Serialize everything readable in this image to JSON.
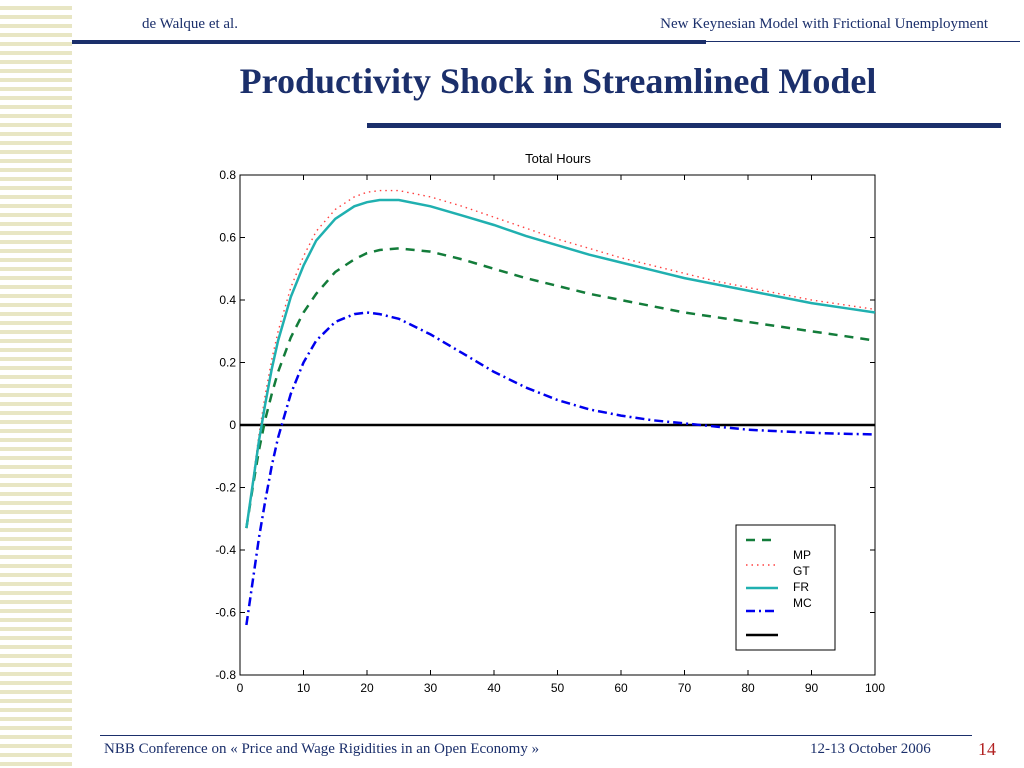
{
  "header": {
    "left": "de Walque et al.",
    "right": "New Keynesian Model  with Frictional Unemployment"
  },
  "slide_title": "Productivity Shock in Streamlined Model",
  "footer": {
    "left": "NBB Conference on « Price and Wage Rigidities in an Open Economy »",
    "right": "12-13 October 2006",
    "page_number": "14"
  },
  "colors": {
    "theme_navy": "#1b2f6b",
    "page_number_red": "#b22222",
    "MP": "#137c3a",
    "GT": "#ff4040",
    "FR": "#20b0b0",
    "MC": "#0000ee",
    "zero_line": "#000000"
  },
  "chart_data": {
    "type": "line",
    "title": "Total Hours",
    "xlabel": "",
    "ylabel": "",
    "xlim": [
      0,
      100
    ],
    "ylim": [
      -0.8,
      0.8
    ],
    "xticks": [
      0,
      10,
      20,
      30,
      40,
      50,
      60,
      70,
      80,
      90,
      100
    ],
    "yticks": [
      -0.8,
      -0.6,
      -0.4,
      -0.2,
      0,
      0.2,
      0.4,
      0.6,
      0.8
    ],
    "legend_position": "bottom-right",
    "grid": false,
    "x": [
      1,
      2,
      3,
      4,
      5,
      6,
      8,
      10,
      12,
      15,
      18,
      20,
      22,
      25,
      30,
      35,
      40,
      45,
      50,
      55,
      60,
      65,
      70,
      75,
      80,
      85,
      90,
      95,
      100
    ],
    "series": [
      {
        "name": "MP",
        "style": "dashed",
        "color": "#137c3a",
        "values": [
          -0.33,
          -0.2,
          -0.08,
          0.02,
          0.1,
          0.17,
          0.28,
          0.36,
          0.42,
          0.49,
          0.53,
          0.55,
          0.56,
          0.565,
          0.555,
          0.53,
          0.5,
          0.47,
          0.445,
          0.42,
          0.4,
          0.38,
          0.36,
          0.345,
          0.33,
          0.315,
          0.3,
          0.285,
          0.27
        ]
      },
      {
        "name": "GT",
        "style": "dotted",
        "color": "#ff4040",
        "values": [
          -0.33,
          -0.18,
          -0.03,
          0.1,
          0.21,
          0.3,
          0.44,
          0.54,
          0.62,
          0.69,
          0.73,
          0.745,
          0.75,
          0.75,
          0.73,
          0.7,
          0.665,
          0.63,
          0.595,
          0.565,
          0.535,
          0.51,
          0.485,
          0.46,
          0.44,
          0.42,
          0.4,
          0.385,
          0.37
        ]
      },
      {
        "name": "FR",
        "style": "solid",
        "color": "#20b0b0",
        "values": [
          -0.33,
          -0.19,
          -0.05,
          0.07,
          0.18,
          0.27,
          0.41,
          0.51,
          0.59,
          0.66,
          0.7,
          0.713,
          0.72,
          0.72,
          0.7,
          0.67,
          0.64,
          0.605,
          0.575,
          0.545,
          0.52,
          0.495,
          0.47,
          0.45,
          0.43,
          0.41,
          0.39,
          0.375,
          0.36
        ]
      },
      {
        "name": "MC",
        "style": "dashdot",
        "color": "#0000ee",
        "values": [
          -0.64,
          -0.5,
          -0.36,
          -0.24,
          -0.13,
          -0.04,
          0.1,
          0.2,
          0.27,
          0.33,
          0.355,
          0.36,
          0.355,
          0.34,
          0.29,
          0.23,
          0.17,
          0.12,
          0.08,
          0.05,
          0.03,
          0.015,
          0.005,
          -0.005,
          -0.015,
          -0.02,
          -0.025,
          -0.028,
          -0.03
        ]
      }
    ],
    "zero_line": 0
  }
}
